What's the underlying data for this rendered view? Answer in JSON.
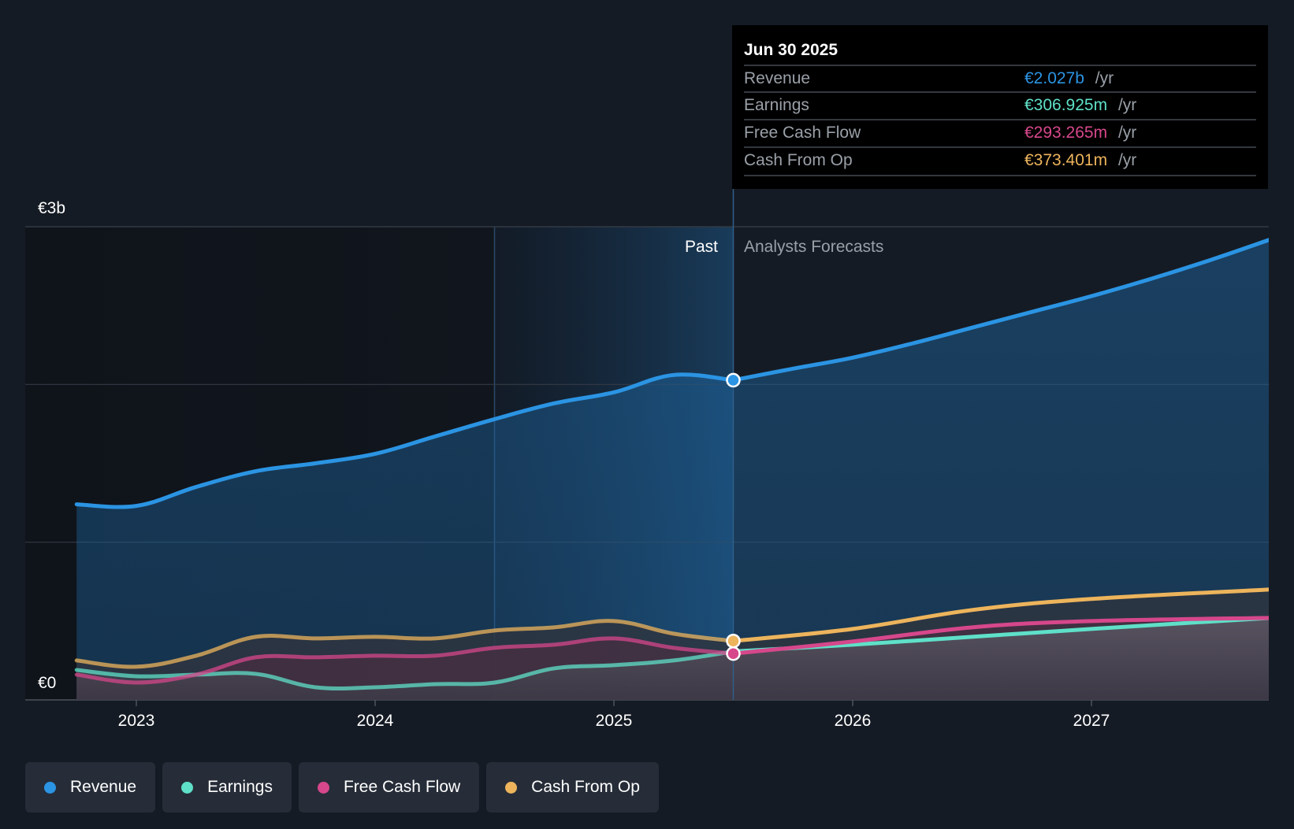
{
  "tooltip": {
    "date": "Jun 30 2025",
    "rows": [
      {
        "label": "Revenue",
        "value": "€2.027b",
        "unit": "/yr",
        "color": "#2b94e3"
      },
      {
        "label": "Earnings",
        "value": "€306.925m",
        "unit": "/yr",
        "color": "#5fe0c8"
      },
      {
        "label": "Free Cash Flow",
        "value": "€293.265m",
        "unit": "/yr",
        "color": "#d6478b"
      },
      {
        "label": "Cash From Op",
        "value": "€373.401m",
        "unit": "/yr",
        "color": "#edb45c"
      }
    ]
  },
  "labels": {
    "past": "Past",
    "forecast": "Analysts Forecasts"
  },
  "legend": [
    {
      "label": "Revenue",
      "color": "#2b94e3"
    },
    {
      "label": "Earnings",
      "color": "#5fe0c8"
    },
    {
      "label": "Free Cash Flow",
      "color": "#d6478b"
    },
    {
      "label": "Cash From Op",
      "color": "#edb45c"
    }
  ],
  "chart_data": {
    "type": "line",
    "y_unit": "€ billions per year",
    "ylim": [
      0,
      3
    ],
    "yticks": [
      {
        "value": 3,
        "label": "€3b"
      },
      {
        "value": 0,
        "label": "€0"
      }
    ],
    "gridlines": [
      0,
      1.0,
      2.0,
      3.0
    ],
    "xlim": [
      2022.75,
      2027.75
    ],
    "xticks": [
      {
        "value": 2023,
        "label": "2023"
      },
      {
        "value": 2024,
        "label": "2024"
      },
      {
        "value": 2025,
        "label": "2025"
      },
      {
        "value": 2026,
        "label": "2026"
      },
      {
        "value": 2027,
        "label": "2027"
      }
    ],
    "past_end": 2025.5,
    "highlight_start": 2024.5,
    "series": [
      {
        "name": "Revenue",
        "color": "#2b94e3",
        "past": [
          [
            2022.75,
            1.24
          ],
          [
            2023.0,
            1.23
          ],
          [
            2023.25,
            1.35
          ],
          [
            2023.5,
            1.45
          ],
          [
            2023.75,
            1.5
          ],
          [
            2024.0,
            1.56
          ],
          [
            2024.25,
            1.67
          ],
          [
            2024.5,
            1.78
          ],
          [
            2024.75,
            1.88
          ],
          [
            2025.0,
            1.95
          ],
          [
            2025.25,
            2.06
          ],
          [
            2025.5,
            2.027
          ]
        ],
        "forecast": [
          [
            2025.5,
            2.027
          ],
          [
            2025.75,
            2.1
          ],
          [
            2026.0,
            2.17
          ],
          [
            2026.25,
            2.26
          ],
          [
            2026.5,
            2.36
          ],
          [
            2026.75,
            2.46
          ],
          [
            2027.0,
            2.56
          ],
          [
            2027.25,
            2.67
          ],
          [
            2027.5,
            2.79
          ],
          [
            2027.75,
            2.92
          ]
        ]
      },
      {
        "name": "Earnings",
        "color": "#5fe0c8",
        "past": [
          [
            2022.75,
            0.19
          ],
          [
            2023.0,
            0.15
          ],
          [
            2023.25,
            0.16
          ],
          [
            2023.5,
            0.165
          ],
          [
            2023.75,
            0.08
          ],
          [
            2024.0,
            0.08
          ],
          [
            2024.25,
            0.1
          ],
          [
            2024.5,
            0.11
          ],
          [
            2024.75,
            0.2
          ],
          [
            2025.0,
            0.22
          ],
          [
            2025.25,
            0.25
          ],
          [
            2025.5,
            0.306925
          ]
        ],
        "forecast": [
          [
            2025.5,
            0.306925
          ],
          [
            2026.0,
            0.35
          ],
          [
            2026.5,
            0.4
          ],
          [
            2027.0,
            0.45
          ],
          [
            2027.75,
            0.52
          ]
        ]
      },
      {
        "name": "Free Cash Flow",
        "color": "#d6478b",
        "past": [
          [
            2022.75,
            0.16
          ],
          [
            2023.0,
            0.11
          ],
          [
            2023.25,
            0.16
          ],
          [
            2023.5,
            0.27
          ],
          [
            2023.75,
            0.27
          ],
          [
            2024.0,
            0.28
          ],
          [
            2024.25,
            0.28
          ],
          [
            2024.5,
            0.33
          ],
          [
            2024.75,
            0.35
          ],
          [
            2025.0,
            0.39
          ],
          [
            2025.25,
            0.33
          ],
          [
            2025.5,
            0.293265
          ]
        ],
        "forecast": [
          [
            2025.5,
            0.293265
          ],
          [
            2026.0,
            0.37
          ],
          [
            2026.5,
            0.46
          ],
          [
            2027.0,
            0.5
          ],
          [
            2027.75,
            0.52
          ]
        ]
      },
      {
        "name": "Cash From Op",
        "color": "#edb45c",
        "past": [
          [
            2022.75,
            0.25
          ],
          [
            2023.0,
            0.21
          ],
          [
            2023.25,
            0.28
          ],
          [
            2023.5,
            0.4
          ],
          [
            2023.75,
            0.39
          ],
          [
            2024.0,
            0.4
          ],
          [
            2024.25,
            0.39
          ],
          [
            2024.5,
            0.44
          ],
          [
            2024.75,
            0.46
          ],
          [
            2025.0,
            0.5
          ],
          [
            2025.25,
            0.42
          ],
          [
            2025.5,
            0.373401
          ]
        ],
        "forecast": [
          [
            2025.5,
            0.373401
          ],
          [
            2026.0,
            0.45
          ],
          [
            2026.5,
            0.57
          ],
          [
            2027.0,
            0.64
          ],
          [
            2027.75,
            0.7
          ]
        ]
      }
    ]
  }
}
